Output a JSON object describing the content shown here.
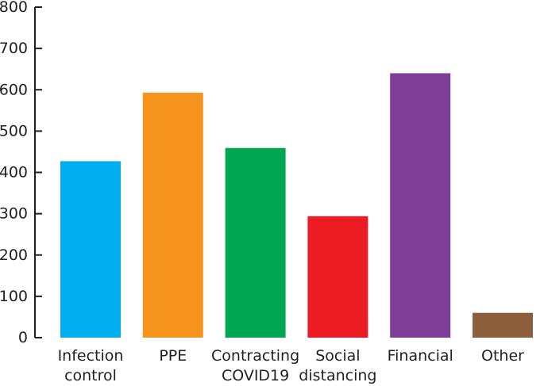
{
  "chart_data": {
    "type": "bar",
    "categories": [
      [
        "Infection",
        "control"
      ],
      [
        "PPE"
      ],
      [
        "Contracting",
        "COVID19"
      ],
      [
        "Social",
        "distancing"
      ],
      [
        "Financial"
      ],
      [
        "Other"
      ]
    ],
    "values": [
      427,
      593,
      459,
      294,
      640,
      60
    ],
    "colors": [
      "#00aeef",
      "#f7941d",
      "#00a651",
      "#ed1c24",
      "#7f3f98",
      "#8b5e3c"
    ],
    "ylim": [
      0,
      800
    ],
    "yticks": [
      0,
      100,
      200,
      300,
      400,
      500,
      600,
      700,
      800
    ],
    "title": "",
    "xlabel": "",
    "ylabel": "",
    "grid": false,
    "legend": "none"
  }
}
